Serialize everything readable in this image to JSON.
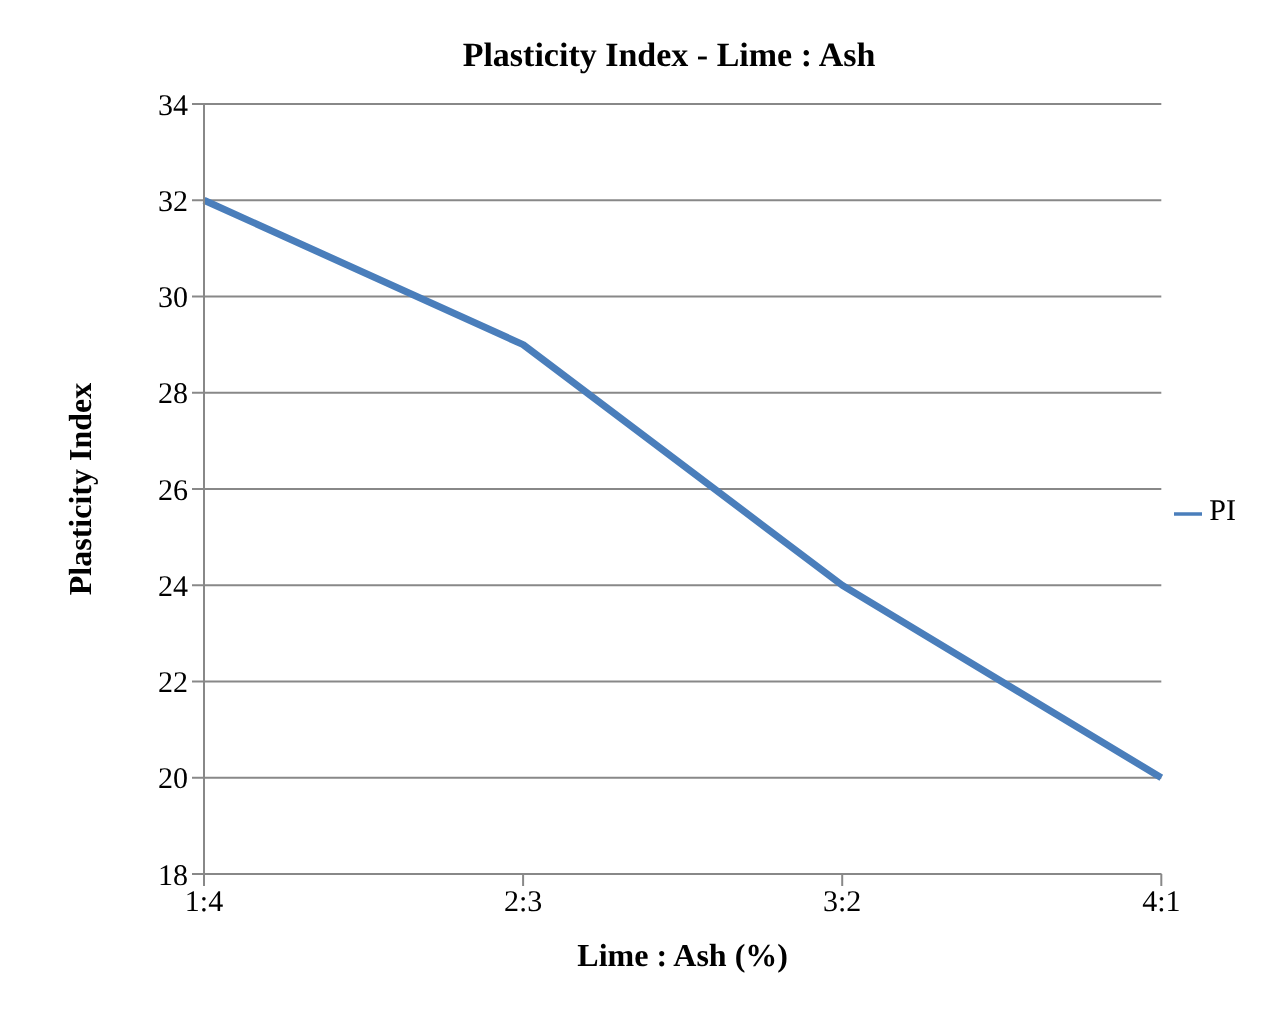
{
  "chart_data": {
    "type": "line",
    "title": "Plasticity Index - Lime : Ash",
    "xlabel": "Lime : Ash (%)",
    "ylabel": "Plasticity Index",
    "categories": [
      "1:4",
      "2:3",
      "3:2",
      "4:1"
    ],
    "series": [
      {
        "name": "PI",
        "color": "#4a7ebb",
        "values": [
          32,
          29,
          24,
          20
        ]
      }
    ],
    "ylim": [
      18,
      34
    ],
    "yticks": [
      18,
      20,
      22,
      24,
      26,
      28,
      30,
      32,
      34
    ],
    "grid": "y",
    "legend": "right",
    "marker": "none",
    "line_style": "solid"
  }
}
